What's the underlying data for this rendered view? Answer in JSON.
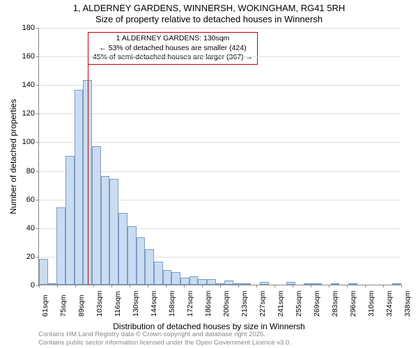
{
  "chart": {
    "type": "histogram",
    "title_main": "1, ALDERNEY GARDENS, WINNERSH, WOKINGHAM, RG41 5RH",
    "title_sub": "Size of property relative to detached houses in Winnersh",
    "y_axis_label": "Number of detached properties",
    "x_axis_label": "Distribution of detached houses by size in Winnersh",
    "background_color": "#ffffff",
    "bar_fill": "#cadcf0",
    "bar_border": "#7a9cc6",
    "marker_color": "#c00000",
    "grid_color": "#dddddd",
    "axis_color": "#888888",
    "ylim": [
      0,
      180
    ],
    "ytick_step": 20,
    "y_ticks": [
      0,
      20,
      40,
      60,
      80,
      100,
      120,
      140,
      160,
      180
    ],
    "x_ticks": [
      "61sqm",
      "75sqm",
      "89sqm",
      "103sqm",
      "116sqm",
      "130sqm",
      "144sqm",
      "158sqm",
      "172sqm",
      "186sqm",
      "200sqm",
      "213sqm",
      "227sqm",
      "241sqm",
      "255sqm",
      "269sqm",
      "283sqm",
      "296sqm",
      "310sqm",
      "324sqm",
      "338sqm"
    ],
    "bars": [
      18,
      1,
      54,
      90,
      136,
      143,
      97,
      76,
      74,
      50,
      41,
      33,
      25,
      16,
      10,
      9,
      5,
      6,
      4,
      4,
      1,
      3,
      1,
      1,
      0,
      2,
      0,
      0,
      2,
      0,
      1,
      1,
      0,
      1,
      0,
      1,
      0,
      0,
      0,
      0,
      1
    ],
    "marker_x_index": 5,
    "marker_height": 166,
    "annotation": {
      "line1": "1 ALDERNEY GARDENS: 130sqm",
      "line2": "← 53% of detached houses are smaller (424)",
      "line3": "45% of semi-detached houses are larger (367) →"
    },
    "footer_line1": "Contains HM Land Registry data © Crown copyright and database right 2025.",
    "footer_line2": "Contains public sector information licensed under the Open Government Licence v3.0."
  }
}
